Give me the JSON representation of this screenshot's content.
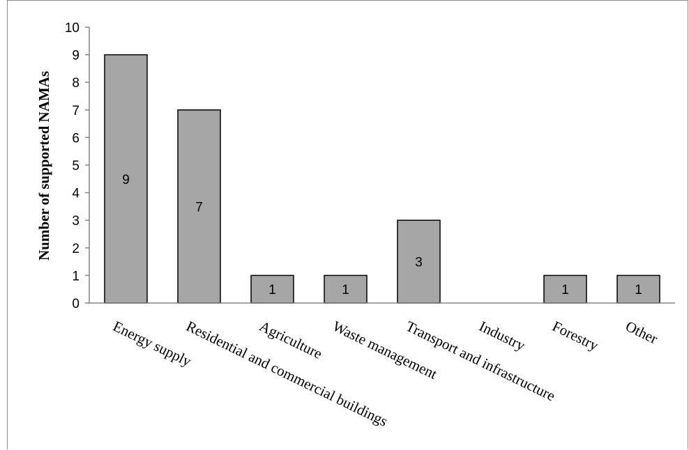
{
  "chart_data": {
    "type": "bar",
    "categories": [
      "Energy supply",
      "Residential and commercial buildings",
      "Agriculture",
      "Waste management",
      "Transport and infrastructure",
      "Industry",
      "Forestry",
      "Other"
    ],
    "values": [
      9,
      7,
      1,
      1,
      3,
      0,
      1,
      1
    ],
    "data_labels": [
      "9",
      "7",
      "1",
      "1",
      "3",
      "",
      "1",
      "1"
    ],
    "title": "",
    "xlabel": "",
    "ylabel": "Number of supported NAMAs",
    "ylim": [
      0,
      10
    ],
    "yticks": [
      "0",
      "1",
      "2",
      "3",
      "4",
      "5",
      "6",
      "7",
      "8",
      "9",
      "10"
    ],
    "bar_color": "#a6a6a6",
    "bar_border_color": "#000000",
    "grid": false,
    "legend": "none"
  }
}
